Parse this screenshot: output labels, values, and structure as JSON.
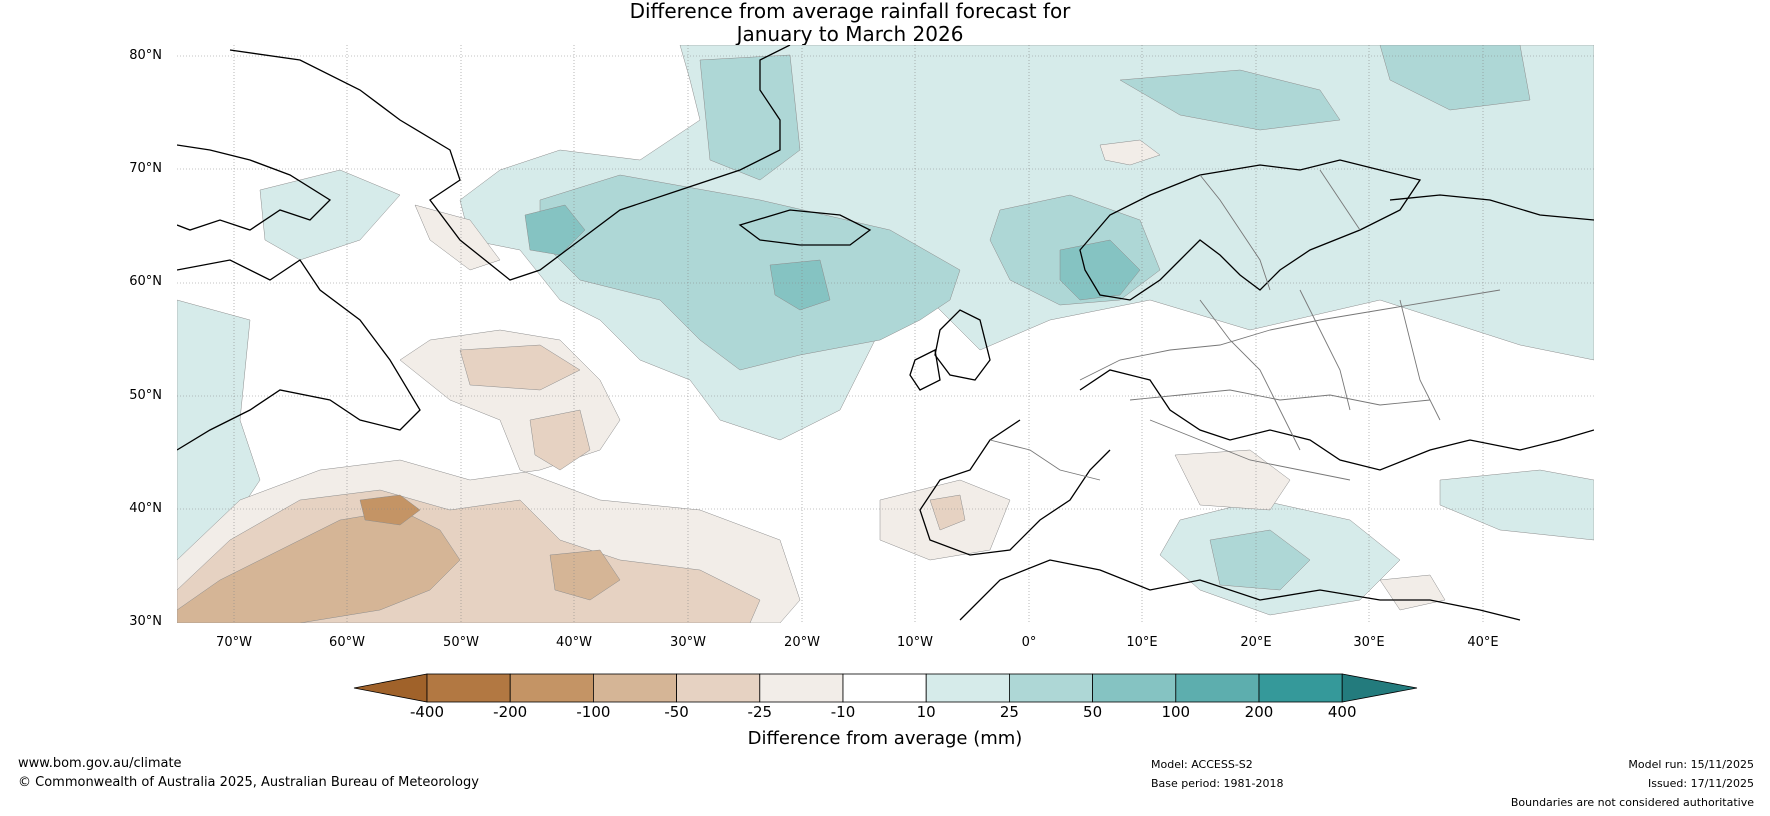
{
  "title": {
    "line1": "Difference from average rainfall forecast for",
    "line2": "January to March 2026"
  },
  "map": {
    "lat_labels": [
      "80°N",
      "70°N",
      "60°N",
      "50°N",
      "40°N",
      "30°N"
    ],
    "lon_labels": [
      "70°W",
      "60°W",
      "50°W",
      "40°W",
      "30°W",
      "20°W",
      "10°W",
      "0°",
      "10°E",
      "20°E",
      "30°E",
      "40°E"
    ]
  },
  "colorbar": {
    "ticks": [
      "-400",
      "-200",
      "-100",
      "-50",
      "-25",
      "-10",
      "10",
      "25",
      "50",
      "100",
      "200",
      "400"
    ],
    "colors": [
      "#a0622a",
      "#b27842",
      "#c49465",
      "#d5b596",
      "#e6d2c2",
      "#f2ede8",
      "#ffffff",
      "#d6ebea",
      "#aed7d6",
      "#85c3c2",
      "#5daeae",
      "#35999a",
      "#237b7d"
    ],
    "label": "Difference from average (mm)"
  },
  "footer": {
    "website": "www.bom.gov.au/climate",
    "copyright": "© Commonwealth of Australia 2025, Australian Bureau of Meteorology",
    "model": "Model: ACCESS-S2",
    "base_period": "Base period: 1981-2018",
    "model_run": "Model run: 15/11/2025",
    "issued": "Issued: 17/11/2025",
    "disclaimer": "Boundaries are not considered authoritative"
  }
}
